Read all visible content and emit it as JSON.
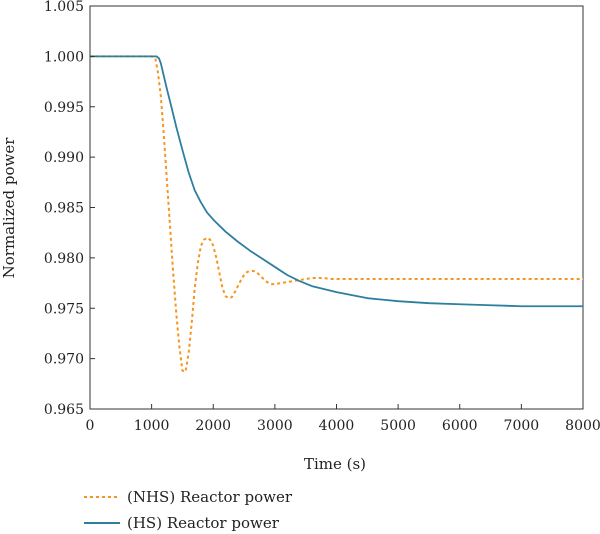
{
  "chart_data": {
    "type": "line",
    "title": "",
    "xlabel": "Time (s)",
    "ylabel": "Normalized power",
    "xlim": [
      0,
      8000
    ],
    "ylim": [
      0.965,
      1.005
    ],
    "xticks": [
      0,
      1000,
      2000,
      3000,
      4000,
      5000,
      6000,
      7000,
      8000
    ],
    "xtick_labels": [
      "0",
      "1000",
      "2000",
      "3000",
      "4000",
      "5000",
      "6000",
      "7000",
      "8000"
    ],
    "yticks": [
      0.965,
      0.97,
      0.975,
      0.98,
      0.985,
      0.99,
      0.995,
      1.0,
      1.005
    ],
    "ytick_labels": [
      "0.965",
      "0.970",
      "0.975",
      "0.980",
      "0.985",
      "0.990",
      "0.995",
      "1.000",
      "1.005"
    ],
    "grid": false,
    "legend_position": "bottom-left, below plot",
    "series": [
      {
        "name": "(NHS) Reactor power",
        "color": "#f7941d",
        "style": "dotted",
        "x": [
          0,
          1000,
          1060,
          1100,
          1150,
          1200,
          1250,
          1300,
          1350,
          1400,
          1450,
          1500,
          1550,
          1600,
          1650,
          1700,
          1750,
          1800,
          1850,
          1900,
          1950,
          2000,
          2050,
          2100,
          2150,
          2200,
          2250,
          2300,
          2350,
          2400,
          2450,
          2500,
          2550,
          2600,
          2650,
          2700,
          2750,
          2800,
          2850,
          2900,
          2950,
          3000,
          3100,
          3200,
          3300,
          3400,
          3500,
          3600,
          3700,
          3800,
          3900,
          4000,
          4200,
          4500,
          5000,
          6000,
          7000,
          8000
        ],
        "y": [
          1.0,
          1.0,
          0.9998,
          0.9985,
          0.996,
          0.992,
          0.9875,
          0.983,
          0.9785,
          0.9745,
          0.9712,
          0.9688,
          0.9687,
          0.9705,
          0.9735,
          0.977,
          0.9795,
          0.9812,
          0.9818,
          0.982,
          0.9818,
          0.9812,
          0.98,
          0.9785,
          0.977,
          0.9762,
          0.976,
          0.9761,
          0.9766,
          0.9772,
          0.9778,
          0.9783,
          0.9786,
          0.9787,
          0.9787,
          0.9786,
          0.9783,
          0.978,
          0.9777,
          0.9775,
          0.9774,
          0.9774,
          0.9775,
          0.9776,
          0.9777,
          0.9778,
          0.9779,
          0.978,
          0.978,
          0.978,
          0.9779,
          0.9779,
          0.9779,
          0.9779,
          0.9779,
          0.9779,
          0.9779,
          0.9779
        ]
      },
      {
        "name": "(HS) Reactor power",
        "color": "#2c7f9e",
        "style": "solid",
        "x": [
          0,
          1000,
          1080,
          1120,
          1150,
          1200,
          1250,
          1300,
          1400,
          1500,
          1600,
          1700,
          1800,
          1900,
          2000,
          2200,
          2400,
          2600,
          2800,
          3000,
          3200,
          3400,
          3600,
          3800,
          4000,
          4500,
          5000,
          5500,
          6000,
          6500,
          7000,
          7500,
          8000
        ],
        "y": [
          1.0,
          1.0,
          1.0,
          0.9998,
          0.9993,
          0.998,
          0.9967,
          0.9955,
          0.993,
          0.9907,
          0.9885,
          0.9867,
          0.9855,
          0.9845,
          0.9838,
          0.9826,
          0.9816,
          0.9807,
          0.9799,
          0.9791,
          0.9783,
          0.9777,
          0.9772,
          0.9769,
          0.9766,
          0.976,
          0.9757,
          0.9755,
          0.9754,
          0.9753,
          0.9752,
          0.9752,
          0.9752
        ]
      }
    ]
  }
}
